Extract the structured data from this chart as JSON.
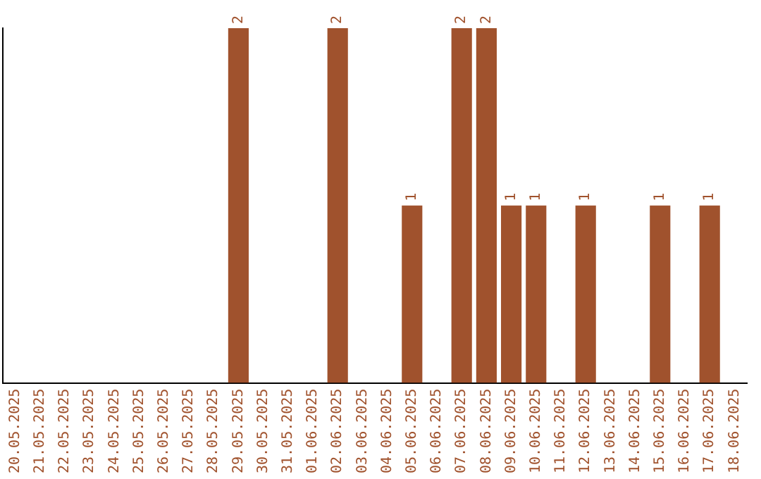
{
  "chart_data": {
    "type": "bar",
    "categories": [
      "20.05.2025",
      "21.05.2025",
      "22.05.2025",
      "23.05.2025",
      "24.05.2025",
      "25.05.2025",
      "26.05.2025",
      "27.05.2025",
      "28.05.2025",
      "29.05.2025",
      "30.05.2025",
      "31.05.2025",
      "01.06.2025",
      "02.06.2025",
      "03.06.2025",
      "04.06.2025",
      "05.06.2025",
      "06.06.2025",
      "07.06.2025",
      "08.06.2025",
      "09.06.2025",
      "10.06.2025",
      "11.06.2025",
      "12.06.2025",
      "13.06.2025",
      "14.06.2025",
      "15.06.2025",
      "16.06.2025",
      "17.06.2025",
      "18.06.2025"
    ],
    "values": [
      0,
      0,
      0,
      0,
      0,
      0,
      0,
      0,
      0,
      2,
      0,
      0,
      0,
      2,
      0,
      0,
      1,
      0,
      2,
      2,
      1,
      1,
      0,
      1,
      0,
      0,
      1,
      0,
      1,
      0
    ],
    "value_labels": [
      null,
      null,
      null,
      null,
      null,
      null,
      null,
      null,
      null,
      "2",
      null,
      null,
      null,
      "2",
      null,
      null,
      "1",
      null,
      "2",
      "2",
      "1",
      "1",
      null,
      "1",
      null,
      null,
      "1",
      null,
      "1",
      null
    ],
    "color": "#a0522d",
    "grid": false,
    "legend": false,
    "tick_labels": "x"
  }
}
